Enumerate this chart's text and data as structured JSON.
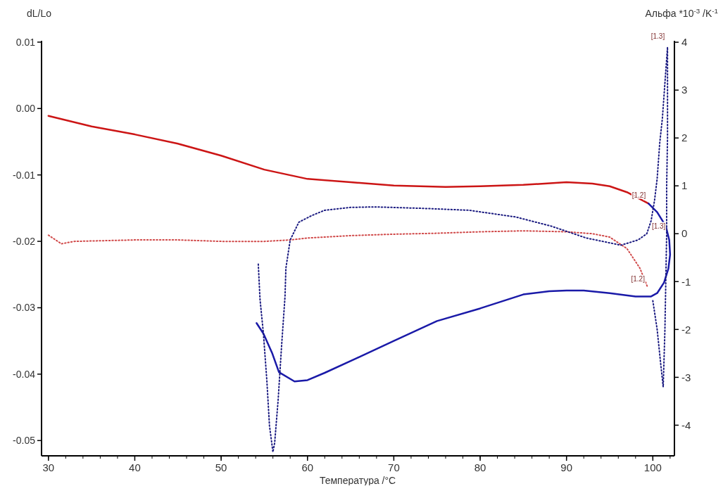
{
  "chart_data": {
    "type": "line",
    "xlabel": "Температура /°C",
    "ylabel": "dL/Lo",
    "y2label": "Альфа *10$^{-3}$ /K$^{-1}$",
    "xlim": [
      29.2,
      102.5
    ],
    "xticks": [
      30,
      40,
      50,
      60,
      70,
      80,
      90,
      100
    ],
    "ylim": [
      -0.0523,
      0.0102
    ],
    "yticks": [
      0.01,
      {
        "value": 0,
        "label": "0.00"
      },
      -0.01,
      -0.02,
      -0.03,
      -0.04,
      -0.05
    ],
    "y2lim": [
      -4.64,
      4.03
    ],
    "y2ticks": [
      4,
      3,
      2,
      1,
      0,
      -1,
      -2,
      -3,
      -4
    ],
    "grid": false,
    "marker": "none",
    "series": [
      {
        "color": "#cc1515",
        "line_style": "solid",
        "x": [
          30,
          35,
          40,
          45,
          50,
          55,
          60,
          65,
          70,
          76,
          80,
          85,
          90,
          93,
          95,
          97,
          99.5
        ],
        "values": [
          -0.0011,
          -0.0027,
          -0.0039,
          -0.0053,
          -0.0071,
          -0.0092,
          -0.0106,
          -0.0111,
          -0.0116,
          -0.0118,
          -0.0117,
          -0.0115,
          -0.0111,
          -0.0113,
          -0.0117,
          -0.0126,
          -0.0143
        ]
      },
      {
        "color": "#1a1aa8",
        "line_style": "solid",
        "x": [
          99.5,
          100.5,
          101.5,
          101.9,
          102,
          101.8,
          101.3,
          100.5,
          99.8,
          98,
          95,
          92,
          90,
          88,
          85,
          80,
          75,
          70,
          66.2,
          62,
          60,
          58.5,
          56.7,
          55.9,
          54.9,
          54.1
        ],
        "values": [
          -0.0143,
          -0.0156,
          -0.0177,
          -0.0198,
          -0.022,
          -0.0241,
          -0.0262,
          -0.0278,
          -0.0283,
          -0.0283,
          -0.0278,
          -0.0274,
          -0.0274,
          -0.0275,
          -0.028,
          -0.0301,
          -0.032,
          -0.035,
          -0.0373,
          -0.0398,
          -0.0409,
          -0.0411,
          -0.0397,
          -0.0368,
          -0.0339,
          -0.0323
        ]
      },
      {
        "color": "#d04848",
        "line_style": "dotted",
        "axis": "y2",
        "x": [
          30,
          31.5,
          33,
          40,
          45,
          50,
          55,
          58,
          60,
          65,
          70,
          75,
          80,
          85,
          90,
          93,
          95,
          97,
          98.5,
          99.4
        ],
        "values": [
          -0.03,
          -0.21,
          -0.16,
          -0.13,
          -0.13,
          -0.16,
          -0.16,
          -0.13,
          -0.09,
          -0.04,
          -0.01,
          0.01,
          0.04,
          0.06,
          0.04,
          0,
          -0.07,
          -0.31,
          -0.72,
          -1.12
        ]
      },
      {
        "color": "#1a1a80",
        "line_style": "dotted",
        "axis": "y2",
        "x": [
          100,
          100.5,
          100.9,
          101.2,
          101.4,
          101.5,
          101.6,
          101.6,
          101.7,
          101.7,
          101.7,
          101.5,
          101.1,
          100.8,
          100.5,
          100.2,
          99.8,
          99.3,
          98.3,
          96.3,
          92.3,
          88.2,
          84.1,
          78.7,
          73.3,
          67.8,
          65,
          62,
          60.5,
          59,
          58,
          57.5,
          57.4,
          57,
          56.6,
          56.2,
          56,
          55.6,
          55.3,
          54.9,
          54.5,
          54.3
        ],
        "values": [
          -1.4,
          -2,
          -2.7,
          -3.2,
          -2,
          -1,
          0,
          1,
          2,
          3,
          3.9,
          3.4,
          2.4,
          1.9,
          1.15,
          0.7,
          0.27,
          0,
          -0.13,
          -0.24,
          -0.09,
          0.16,
          0.35,
          0.49,
          0.53,
          0.56,
          0.55,
          0.49,
          0.38,
          0.24,
          -0.13,
          -0.72,
          -1.31,
          -2.35,
          -3.48,
          -4.37,
          -4.56,
          -4.01,
          -3.08,
          -2.09,
          -1.36,
          -0.62
        ]
      }
    ],
    "annotations": [
      {
        "text": "[1.2]",
        "x": 99.5,
        "y": -0.0143
      },
      {
        "text": "[1.2]",
        "x": 99.4,
        "y": -0.0269
      },
      {
        "text": "[1.3]",
        "x": 101.7,
        "y": 0.0097
      },
      {
        "text": "[1.3]",
        "x": 101.8,
        "y": -0.0189
      }
    ]
  }
}
